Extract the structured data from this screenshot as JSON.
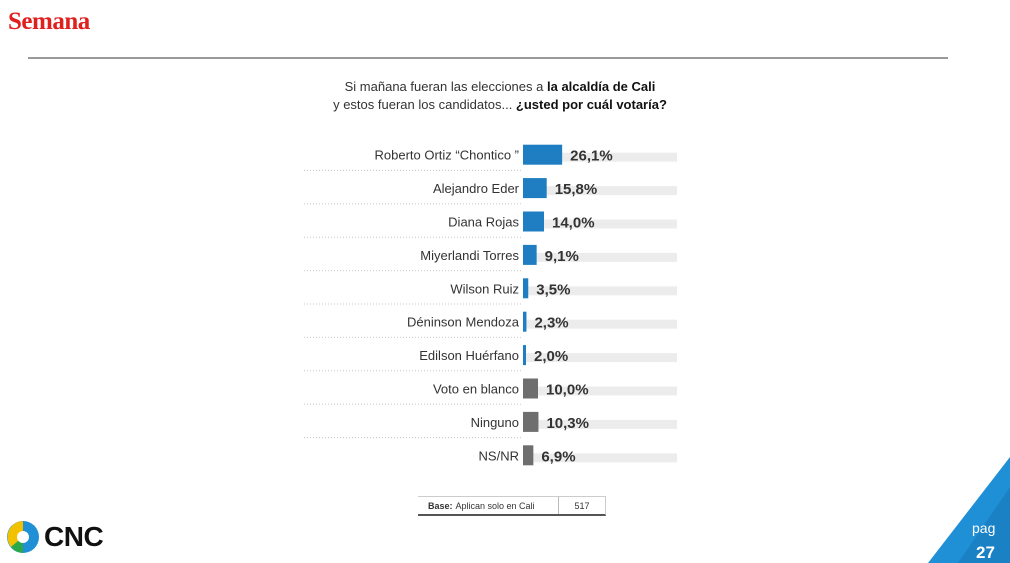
{
  "brand": "Semana",
  "question": {
    "line1_normal": "Si mañana fueran las elecciones a ",
    "line1_bold": "la alcaldía de Cali",
    "line2_normal": "y estos  fueran los candidatos... ",
    "line2_bold": "¿usted por cuál votaría?"
  },
  "chart_data": {
    "type": "bar",
    "orientation": "horizontal",
    "categories": [
      "Roberto Ortiz “Chontico ”",
      "Alejandro Eder",
      "Diana Rojas",
      "Miyerlandi Torres",
      "Wilson Ruiz",
      "Déninson Mendoza",
      "Edilson Huérfano",
      "Voto en blanco",
      "Ninguno",
      "NS/NR"
    ],
    "values": [
      26.1,
      15.8,
      14.0,
      9.1,
      3.5,
      2.3,
      2.0,
      10.0,
      10.3,
      6.9
    ],
    "value_labels": [
      "26,1%",
      "15,8%",
      "14,0%",
      "9,1%",
      "3,5%",
      "2,3%",
      "2,0%",
      "10,0%",
      "10,3%",
      "6,9%"
    ],
    "bar_kind": [
      "candidate",
      "candidate",
      "candidate",
      "candidate",
      "candidate",
      "candidate",
      "candidate",
      "other",
      "other",
      "other"
    ],
    "colors": {
      "candidate": "#1f7ec2",
      "other": "#6e6e6e",
      "track": "#ececec"
    }
  },
  "base": {
    "label_bold": "Base:",
    "label": "Aplican solo en Cali",
    "n": "517"
  },
  "logo": {
    "text": "CNC"
  },
  "page": {
    "label": "pag",
    "number": "27"
  },
  "colors": {
    "brand": "#e0201f",
    "accent": "#1f8fd6"
  }
}
